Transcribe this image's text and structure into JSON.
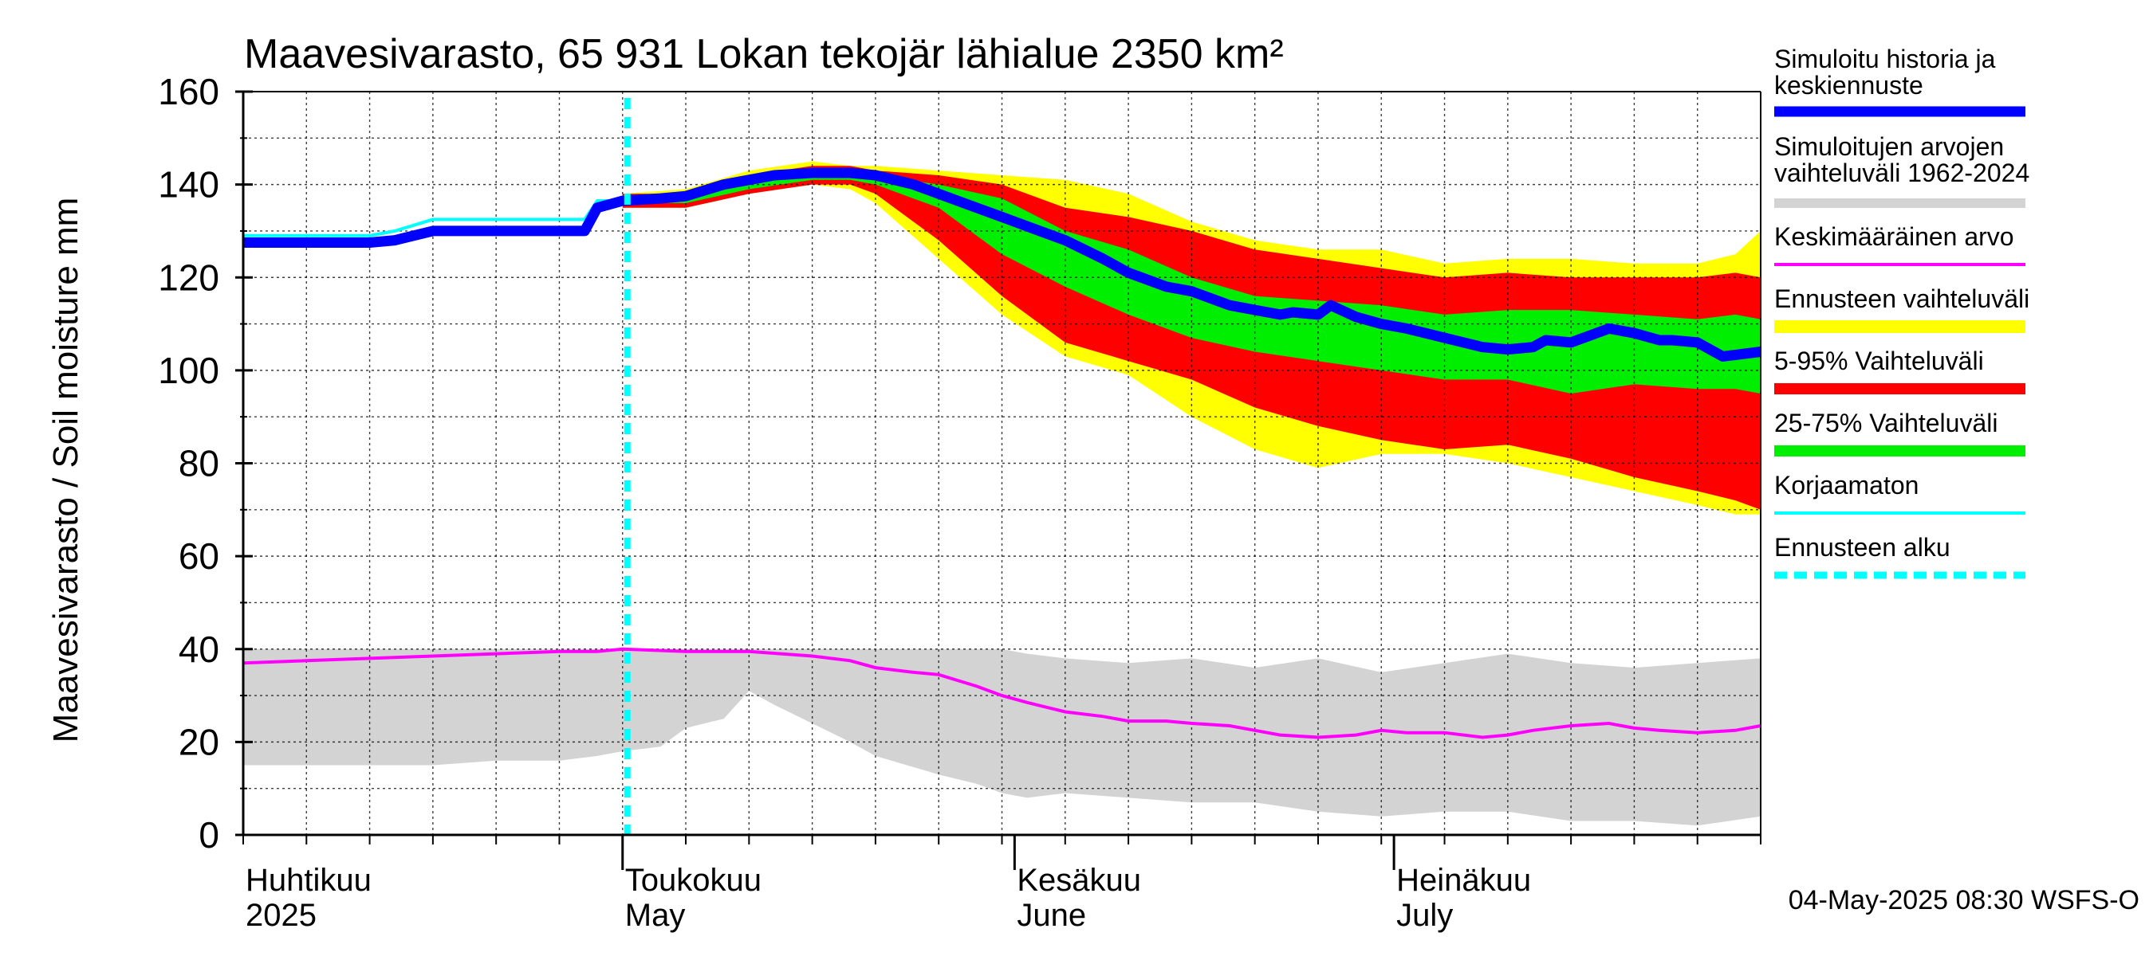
{
  "chart_data": {
    "type": "area",
    "title": "Maavesivarasto, 65 931 Lokan tekojär lähialue 2350 km²",
    "ylabel": "Maavesivarasto / Soil moisture   mm",
    "xlabel": "",
    "ylim": [
      0,
      160
    ],
    "yticks": [
      0,
      20,
      40,
      60,
      80,
      100,
      120,
      140,
      160
    ],
    "x_domain_days": [
      0,
      120
    ],
    "x_unit": "days since 2025-04-01",
    "grid": true,
    "month_labels": [
      {
        "day": 0,
        "line1": "Huhtikuu",
        "line2": "2025"
      },
      {
        "day": 30,
        "line1": "Toukokuu",
        "line2": "May"
      },
      {
        "day": 61,
        "line1": "Kesäkuu",
        "line2": "June"
      },
      {
        "day": 91,
        "line1": "Heinäkuu",
        "line2": "July"
      }
    ],
    "forecast_start_day": 30,
    "footer": "04-May-2025 08:30 WSFS-O",
    "legend": [
      {
        "key": "history",
        "label_lines": [
          "Simuloitu historia ja",
          "keskiennuste"
        ],
        "color": "#0000ff"
      },
      {
        "key": "range_all",
        "label_lines": [
          "Simuloitujen arvojen",
          "vaihteluväli 1962-2024"
        ],
        "color": "#d3d3d3"
      },
      {
        "key": "mean",
        "label_lines": [
          "Keskimääräinen arvo"
        ],
        "color": "#ff00ff"
      },
      {
        "key": "fc_range",
        "label_lines": [
          "Ennusteen vaihteluväli"
        ],
        "color": "#ffff00"
      },
      {
        "key": "p5_95",
        "label_lines": [
          "5-95% Vaihteluväli"
        ],
        "color": "#ff0000"
      },
      {
        "key": "p25_75",
        "label_lines": [
          "25-75% Vaihteluväli"
        ],
        "color": "#00ee00"
      },
      {
        "key": "uncorrected",
        "label_lines": [
          "Korjaamaton"
        ],
        "color": "#00ffff"
      },
      {
        "key": "fc_start",
        "label_lines": [
          "Ennusteen alku"
        ],
        "color": "#00ffff"
      }
    ],
    "series": {
      "history_range": {
        "x": [
          0,
          5,
          10,
          15,
          20,
          25,
          28,
          30,
          33,
          35,
          38,
          40,
          42,
          45,
          48,
          50,
          55,
          58,
          60,
          62,
          65,
          70,
          75,
          80,
          85,
          90,
          95,
          100,
          105,
          110,
          115,
          120
        ],
        "upper": [
          40,
          40,
          40,
          40,
          40,
          40,
          40,
          40,
          40,
          40,
          40,
          40,
          40,
          40,
          40,
          40,
          40,
          40,
          40,
          39,
          38,
          37,
          38,
          36,
          38,
          35,
          37,
          39,
          37,
          36,
          37,
          38
        ],
        "lower": [
          15,
          15,
          15,
          15,
          16,
          16,
          17,
          18,
          19,
          23,
          25,
          31,
          28,
          24,
          20,
          17,
          13,
          11,
          9,
          8,
          9,
          8,
          7,
          7,
          5,
          4,
          5,
          5,
          3,
          3,
          2,
          4
        ]
      },
      "mean": {
        "x": [
          0,
          5,
          10,
          15,
          20,
          25,
          28,
          30,
          35,
          40,
          45,
          48,
          50,
          53,
          55,
          58,
          60,
          62,
          65,
          68,
          70,
          73,
          75,
          78,
          80,
          82,
          85,
          88,
          90,
          92,
          95,
          98,
          100,
          102,
          105,
          108,
          110,
          112,
          115,
          118,
          120
        ],
        "values": [
          37,
          37.5,
          38,
          38.5,
          39,
          39.5,
          39.5,
          40,
          39.5,
          39.5,
          38.5,
          37.5,
          36,
          35,
          34.5,
          32,
          30,
          28.5,
          26.5,
          25.5,
          24.5,
          24.5,
          24,
          23.5,
          22.5,
          21.5,
          21,
          21.5,
          22.5,
          22,
          22,
          21,
          21.5,
          22.5,
          23.5,
          24,
          23,
          22.5,
          22,
          22.5,
          23.5
        ]
      },
      "fc_yellow": {
        "x": [
          30,
          35,
          40,
          45,
          48,
          50,
          55,
          60,
          65,
          70,
          75,
          80,
          85,
          90,
          95,
          100,
          105,
          110,
          115,
          118,
          120
        ],
        "upper": [
          138,
          139,
          143,
          145,
          144,
          144,
          143,
          142,
          141,
          138,
          132,
          128,
          126,
          126,
          123,
          124,
          124,
          123,
          123,
          125,
          130
        ],
        "lower": [
          135,
          135,
          138,
          140,
          139,
          136,
          124,
          112,
          103,
          99,
          90,
          83,
          79,
          82,
          82,
          80,
          77,
          74,
          71,
          69,
          69
        ]
      },
      "fc_red": {
        "x": [
          30,
          35,
          40,
          45,
          48,
          50,
          55,
          60,
          65,
          70,
          75,
          80,
          85,
          90,
          95,
          100,
          105,
          110,
          115,
          118,
          120
        ],
        "upper": [
          138,
          138,
          142,
          144,
          144,
          143,
          142,
          140,
          135,
          133,
          130,
          126,
          124,
          122,
          120,
          121,
          120,
          120,
          120,
          121,
          120
        ],
        "lower": [
          135,
          135,
          138,
          140,
          140,
          138,
          128,
          116,
          106,
          102,
          98,
          92,
          88,
          85,
          83,
          84,
          81,
          77,
          74,
          72,
          70
        ]
      },
      "fc_green": {
        "x": [
          30,
          35,
          40,
          45,
          48,
          50,
          55,
          60,
          65,
          70,
          75,
          80,
          85,
          90,
          95,
          100,
          105,
          110,
          115,
          118,
          120
        ],
        "upper": [
          137,
          138,
          141,
          143,
          143,
          142,
          140,
          137,
          130,
          126,
          120,
          116,
          115,
          114,
          112,
          113,
          113,
          112,
          111,
          112,
          111
        ],
        "lower": [
          136,
          136,
          139,
          141,
          141,
          140,
          135,
          125,
          118,
          112,
          107,
          104,
          102,
          100,
          98,
          98,
          95,
          97,
          96,
          96,
          95
        ]
      },
      "history_mean": {
        "x": [
          0,
          5,
          10,
          12,
          15,
          20,
          25,
          27,
          28,
          30,
          33,
          35,
          38,
          40,
          42,
          45,
          48,
          50,
          53,
          55,
          58,
          60,
          62,
          65,
          68,
          70,
          73,
          75,
          78,
          80,
          82,
          83,
          85,
          86,
          88,
          90,
          92,
          95,
          98,
          100,
          102,
          103,
          105,
          108,
          110,
          112,
          113,
          115,
          117,
          120
        ],
        "values": [
          127.5,
          127.5,
          127.5,
          128,
          130,
          130,
          130,
          130,
          135,
          136.5,
          137,
          137.5,
          140,
          141,
          142,
          142.5,
          142.5,
          142,
          140,
          138,
          135,
          133,
          131,
          128,
          124,
          121,
          118,
          117,
          114,
          113,
          112,
          112.5,
          112,
          114,
          111.5,
          110,
          109,
          107,
          105,
          104.5,
          105,
          106.5,
          106,
          109,
          108,
          106.5,
          106.5,
          106,
          103,
          104
        ]
      },
      "uncorrected": {
        "x": [
          0,
          10,
          11,
          12,
          15,
          20,
          25,
          27,
          28,
          30
        ],
        "values": [
          129,
          129,
          129.5,
          130,
          132.5,
          132.5,
          132.5,
          132.5,
          136.5,
          136.5
        ]
      }
    }
  }
}
